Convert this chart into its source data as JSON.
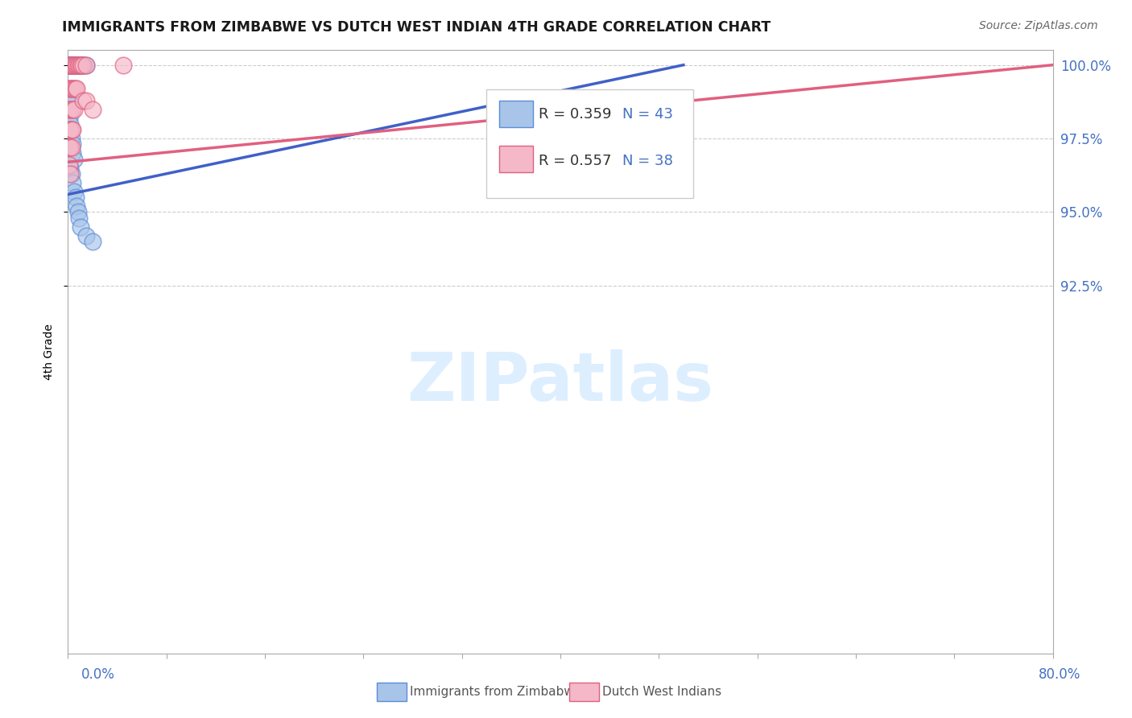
{
  "title": "IMMIGRANTS FROM ZIMBABWE VS DUTCH WEST INDIAN 4TH GRADE CORRELATION CHART",
  "source": "Source: ZipAtlas.com",
  "ylabel": "4th Grade",
  "xlim": [
    0.0,
    0.8
  ],
  "ylim": [
    0.8,
    1.005
  ],
  "yticks": [
    1.0,
    0.975,
    0.95,
    0.925
  ],
  "yticklabels": [
    "100.0%",
    "97.5%",
    "95.0%",
    "92.5%"
  ],
  "legend_r1": "R = 0.359",
  "legend_n1": "N = 43",
  "legend_r2": "R = 0.557",
  "legend_n2": "N = 38",
  "color_blue": "#a8c4e8",
  "color_pink": "#f5b8c8",
  "edge_blue": "#5b8dd9",
  "edge_pink": "#e06080",
  "line_blue": "#4060c8",
  "line_pink": "#e06080",
  "axis_label_color": "#4472c4",
  "text_color_r": "#333333",
  "legend_n_color": "#4472c4",
  "grid_color": "#cccccc",
  "watermark_color": "#ddeeff",
  "blue_x": [
    0.001,
    0.001,
    0.002,
    0.002,
    0.002,
    0.003,
    0.003,
    0.003,
    0.004,
    0.004,
    0.004,
    0.005,
    0.005,
    0.006,
    0.006,
    0.007,
    0.008,
    0.009,
    0.01,
    0.011,
    0.012,
    0.013,
    0.015,
    0.001,
    0.001,
    0.002,
    0.002,
    0.003,
    0.003,
    0.004,
    0.004,
    0.005,
    0.002,
    0.003,
    0.004,
    0.005,
    0.006,
    0.007,
    0.008,
    0.009,
    0.01,
    0.015,
    0.02
  ],
  "blue_y": [
    1.0,
    1.0,
    1.0,
    1.0,
    1.0,
    1.0,
    1.0,
    1.0,
    1.0,
    1.0,
    1.0,
    1.0,
    1.0,
    1.0,
    1.0,
    1.0,
    1.0,
    1.0,
    1.0,
    1.0,
    1.0,
    1.0,
    1.0,
    0.99,
    0.988,
    0.983,
    0.98,
    0.978,
    0.975,
    0.973,
    0.97,
    0.968,
    0.965,
    0.963,
    0.96,
    0.957,
    0.955,
    0.952,
    0.95,
    0.948,
    0.945,
    0.942,
    0.94
  ],
  "pink_x": [
    0.001,
    0.002,
    0.003,
    0.004,
    0.005,
    0.006,
    0.007,
    0.008,
    0.009,
    0.01,
    0.011,
    0.012,
    0.015,
    0.001,
    0.002,
    0.003,
    0.004,
    0.005,
    0.006,
    0.007,
    0.001,
    0.002,
    0.003,
    0.004,
    0.005,
    0.001,
    0.002,
    0.003,
    0.004,
    0.001,
    0.002,
    0.003,
    0.001,
    0.002,
    0.045,
    0.012,
    0.015,
    0.02
  ],
  "pink_y": [
    1.0,
    1.0,
    1.0,
    1.0,
    1.0,
    1.0,
    1.0,
    1.0,
    1.0,
    1.0,
    1.0,
    1.0,
    1.0,
    0.992,
    0.992,
    0.992,
    0.992,
    0.992,
    0.992,
    0.992,
    0.985,
    0.985,
    0.985,
    0.985,
    0.985,
    0.978,
    0.978,
    0.978,
    0.978,
    0.972,
    0.972,
    0.972,
    0.966,
    0.963,
    1.0,
    0.988,
    0.988,
    0.985
  ],
  "blue_line_x0": 0.0,
  "blue_line_y0": 0.956,
  "blue_line_x1": 0.5,
  "blue_line_y1": 1.0,
  "pink_line_x0": 0.0,
  "pink_line_y0": 0.967,
  "pink_line_x1": 0.8,
  "pink_line_y1": 1.0
}
